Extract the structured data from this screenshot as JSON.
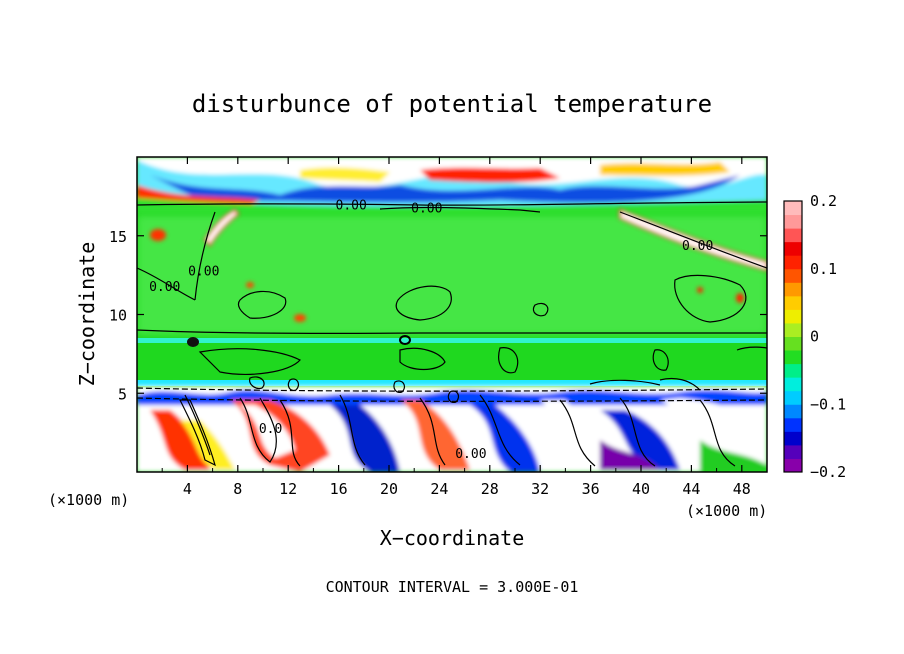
{
  "chart_data": {
    "type": "heatmap",
    "title": "disturbunce of potential temperature",
    "xlabel": "X−coordinate",
    "ylabel": "Z−coordinate",
    "x_unit_label": "(×1000 m)",
    "z_unit_label": "(×1000 m)",
    "xlim": [
      0,
      50
    ],
    "ylim": [
      0,
      20
    ],
    "x_ticks": [
      4,
      8,
      12,
      16,
      20,
      24,
      28,
      32,
      36,
      40,
      44,
      48
    ],
    "y_ticks": [
      5,
      10,
      15
    ],
    "colorbar": {
      "range": [
        -0.2,
        0.2
      ],
      "tick_values": [
        0.2,
        0.1,
        0,
        -0.1,
        -0.2
      ],
      "tick_labels": [
        "0.2",
        "0.1",
        "0",
        "−0.1",
        "−0.2"
      ]
    },
    "contour_labels": [
      {
        "text": "0.00",
        "x": 17,
        "z": 17.0
      },
      {
        "text": "0.00",
        "x": 23,
        "z": 16.8
      },
      {
        "text": "0.00",
        "x": 5.3,
        "z": 12.8
      },
      {
        "text": "0.00",
        "x": 2.2,
        "z": 11.8
      },
      {
        "text": "0.00",
        "x": 44.5,
        "z": 14.4
      },
      {
        "text": "0.00",
        "x": 26.5,
        "z": 1.2
      },
      {
        "text": "0.0",
        "x": 10.6,
        "z": 2.8
      }
    ],
    "contour_interval_text": "CONTOUR INTERVAL = 3.000E-01"
  }
}
